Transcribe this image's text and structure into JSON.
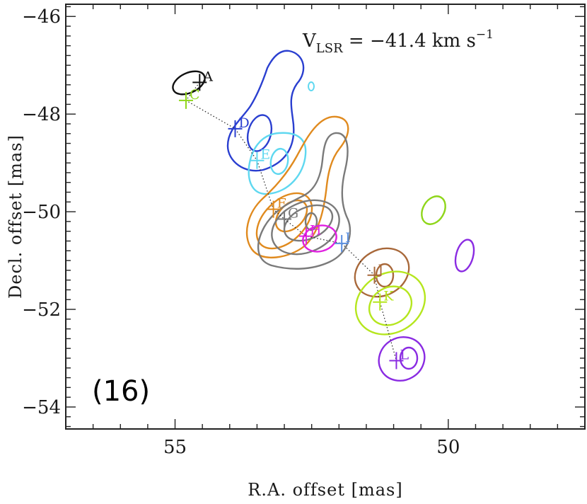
{
  "chart_data": {
    "type": "scatter",
    "xlabel": "R.A. offset [mas]",
    "ylabel": "Decl. offset [mas]",
    "xlim": [
      57.0,
      47.5
    ],
    "ylim": [
      -54.45,
      -45.75
    ],
    "x_ticks": [
      55,
      50
    ],
    "y_ticks": [
      -46,
      -48,
      -50,
      -52,
      -54
    ],
    "x_tick_labels": [
      "55",
      "50"
    ],
    "y_tick_labels": [
      "−46",
      "−48",
      "−50",
      "−52",
      "−54"
    ],
    "annotation_velocity": {
      "prefix": "V",
      "subscript": "LSR",
      "equals": " = −41.4 km s",
      "superscript": "−1"
    },
    "panel_label": "(16)",
    "features": [
      {
        "name": "A",
        "x": 54.55,
        "y": -47.35,
        "color": "#111111"
      },
      {
        "name": "C",
        "x": 54.8,
        "y": -47.72,
        "color": "#8fd61a"
      },
      {
        "name": "D",
        "x": 53.9,
        "y": -48.3,
        "color": "#2a3fd0"
      },
      {
        "name": "E",
        "x": 53.5,
        "y": -48.95,
        "color": "#5fd8f0"
      },
      {
        "name": "F",
        "x": 53.2,
        "y": -49.95,
        "color": "#e08a1e"
      },
      {
        "name": "G",
        "x": 53.0,
        "y": -50.15,
        "color": "#7a7a7a"
      },
      {
        "name": "H",
        "x": 52.6,
        "y": -50.5,
        "color": "#e020e0"
      },
      {
        "name": "I",
        "x": 51.95,
        "y": -50.65,
        "color": "#5b8fe0"
      },
      {
        "name": "J",
        "x": 51.35,
        "y": -51.3,
        "color": "#a8683a"
      },
      {
        "name": "K",
        "x": 51.25,
        "y": -51.85,
        "color": "#b5e61e"
      },
      {
        "name": "L",
        "x": 50.95,
        "y": -53.05,
        "color": "#8a2be2"
      }
    ],
    "trajectory_x": [
      54.55,
      54.8,
      53.9,
      53.5,
      53.2,
      53.0,
      52.6,
      51.95,
      51.35,
      51.25,
      50.95
    ],
    "trajectory_y": [
      -47.35,
      -47.72,
      -48.3,
      -48.95,
      -49.95,
      -50.15,
      -50.5,
      -50.65,
      -51.3,
      -51.85,
      -53.05
    ],
    "grid": false,
    "legend": "none"
  }
}
